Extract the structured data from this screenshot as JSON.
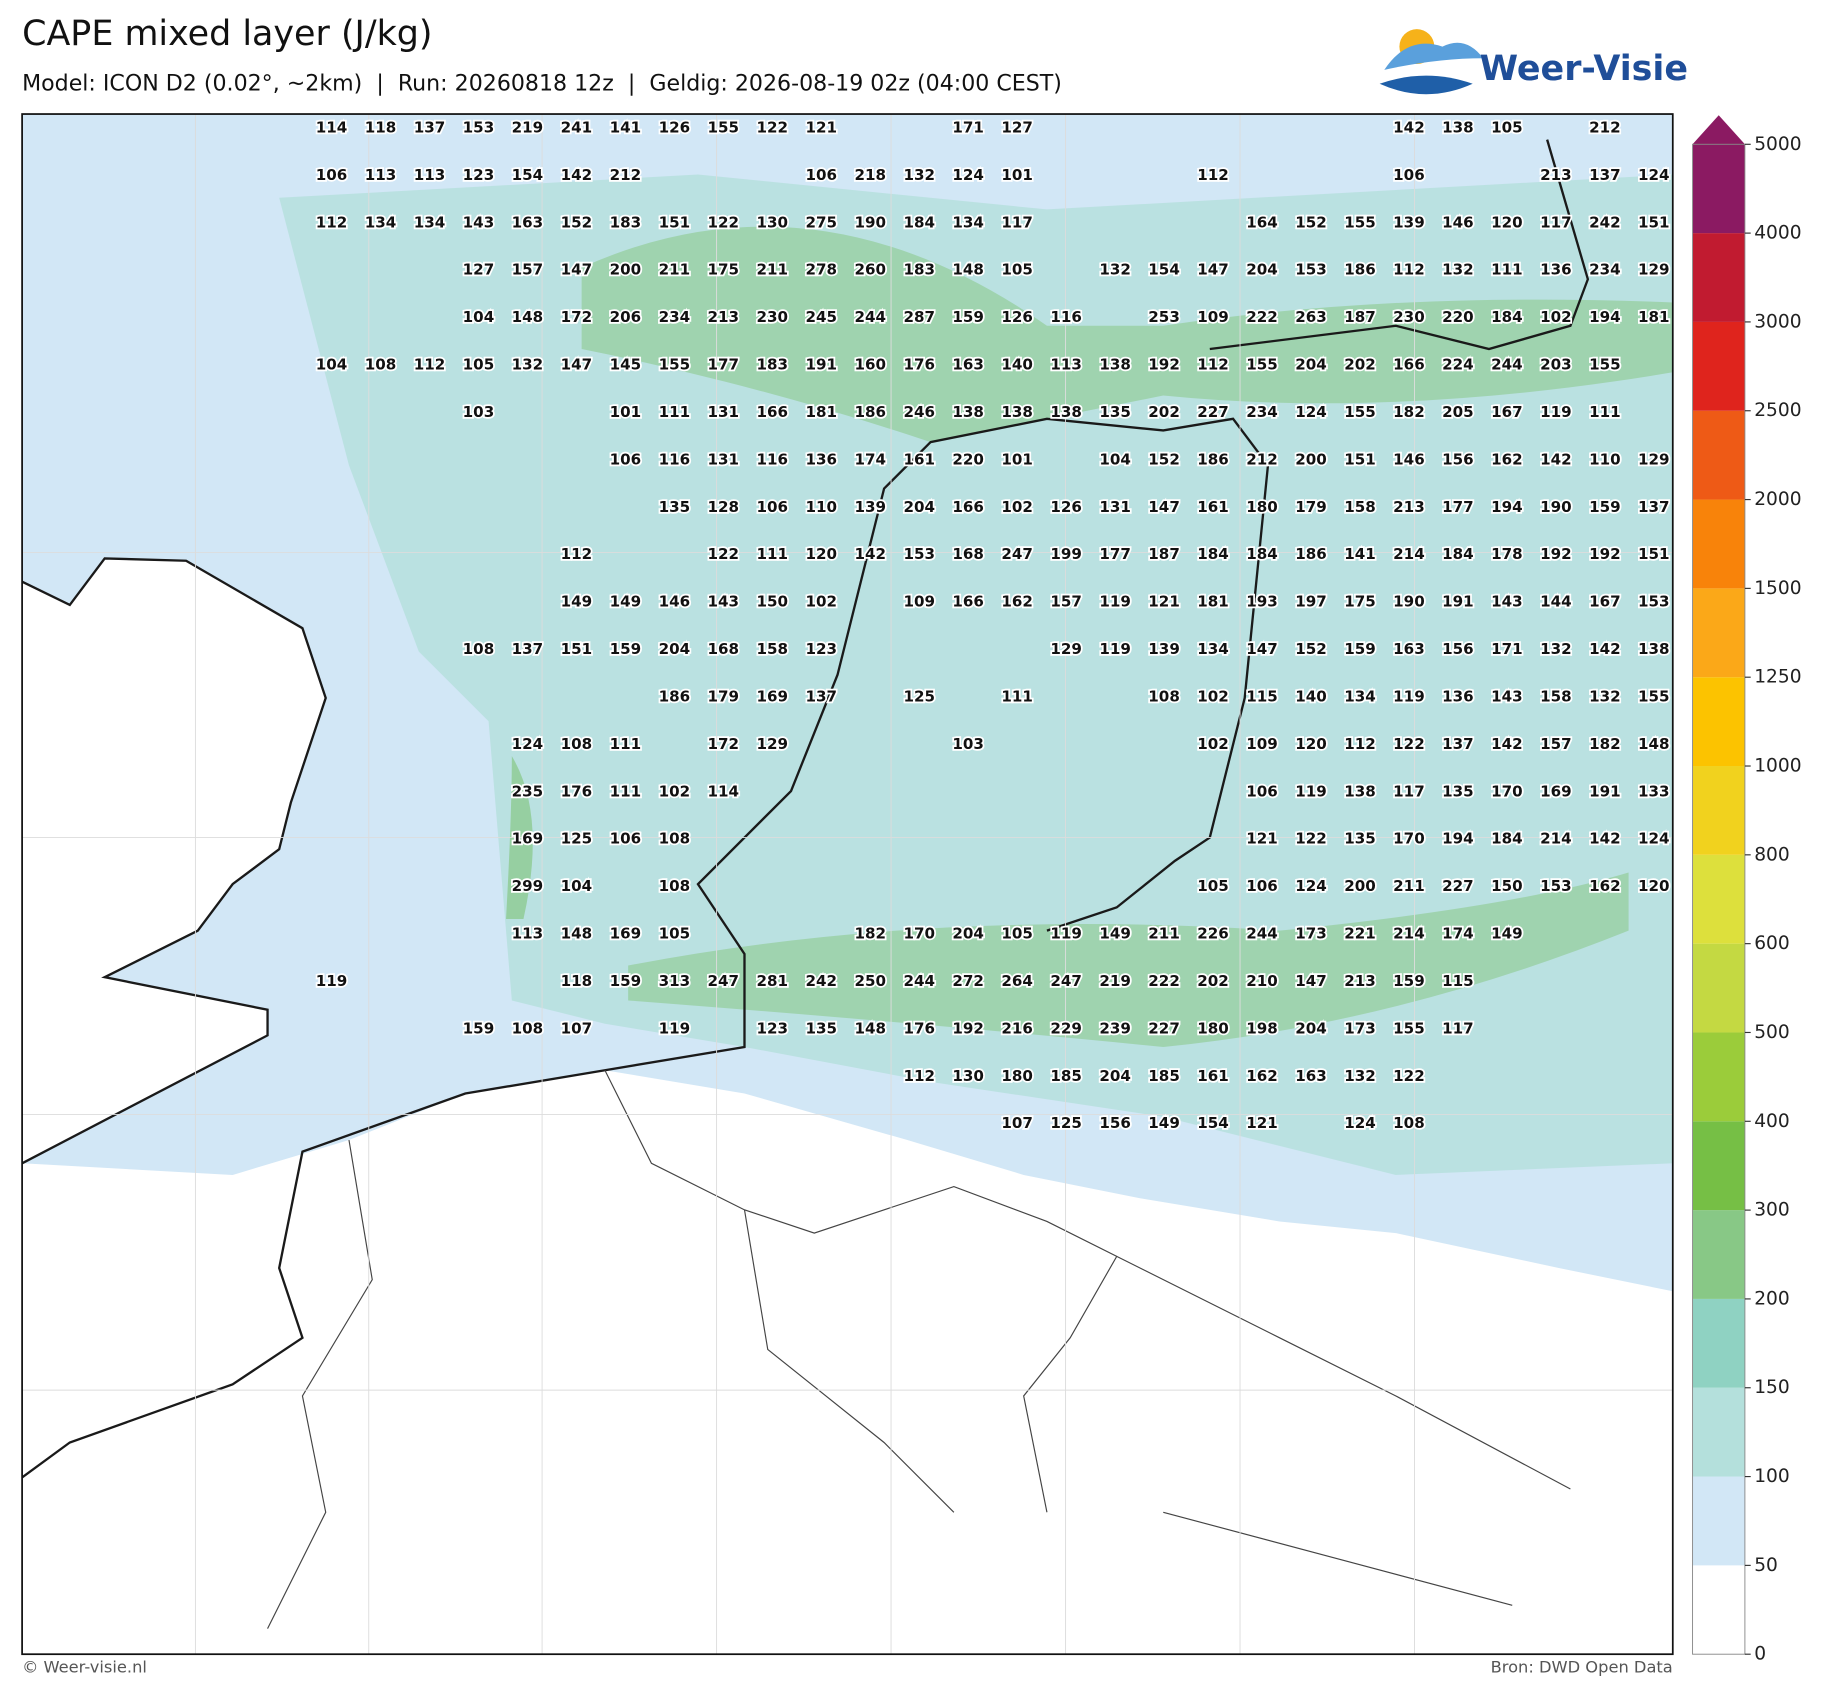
{
  "header": {
    "title": "CAPE mixed layer (J/kg)",
    "subtitle": "Model: ICON D2 (0.02°, ~2km)  |  Run: 20260818 12z  |  Geldig: 2026-08-19 02z (04:00 CEST)",
    "logo": "Weer-Visie"
  },
  "footer": {
    "left": "© Weer-visie.nl",
    "right": "Bron: DWD Open Data"
  },
  "colorbar": {
    "ticks": [
      0,
      50,
      100,
      150,
      200,
      300,
      400,
      500,
      600,
      800,
      1000,
      1250,
      1500,
      2000,
      2500,
      3000,
      4000,
      5000
    ],
    "colors": [
      "#ffffff",
      "#d2e7f6",
      "#b4e0dc",
      "#8fd2c2",
      "#88c886",
      "#76bf45",
      "#9bcc3a",
      "#c4d942",
      "#dde03c",
      "#f1d21e",
      "#fcc300",
      "#fba818",
      "#f8830a",
      "#ee5a16",
      "#df241d",
      "#c11b30",
      "#8b1a62"
    ]
  },
  "grid": {
    "rows": [
      [
        114,
        118,
        137,
        153,
        219,
        241,
        141,
        126,
        155,
        122,
        121,
        null,
        null,
        171,
        127,
        null,
        null,
        null,
        null,
        null,
        null,
        null,
        142,
        138,
        105,
        null,
        212,
        null
      ],
      [
        106,
        113,
        113,
        123,
        154,
        142,
        212,
        null,
        null,
        null,
        106,
        218,
        132,
        124,
        101,
        null,
        null,
        null,
        112,
        null,
        null,
        null,
        106,
        null,
        null,
        213,
        137,
        124
      ],
      [
        112,
        134,
        134,
        143,
        163,
        152,
        183,
        151,
        122,
        130,
        275,
        190,
        184,
        134,
        117,
        null,
        null,
        null,
        null,
        164,
        152,
        155,
        139,
        146,
        120,
        117,
        242,
        151
      ],
      [
        null,
        null,
        null,
        127,
        157,
        147,
        200,
        211,
        175,
        211,
        278,
        260,
        183,
        148,
        105,
        null,
        132,
        154,
        147,
        204,
        153,
        186,
        112,
        132,
        111,
        136,
        234,
        129
      ],
      [
        null,
        null,
        null,
        104,
        148,
        172,
        206,
        234,
        213,
        230,
        245,
        244,
        287,
        159,
        126,
        116,
        null,
        253,
        109,
        222,
        263,
        187,
        230,
        220,
        184,
        102,
        194,
        181
      ],
      [
        104,
        108,
        112,
        105,
        132,
        147,
        145,
        155,
        177,
        183,
        191,
        160,
        176,
        163,
        140,
        113,
        138,
        192,
        112,
        155,
        204,
        202,
        166,
        224,
        244,
        203,
        155,
        null
      ],
      [
        null,
        null,
        null,
        103,
        null,
        null,
        101,
        111,
        131,
        166,
        181,
        186,
        246,
        138,
        138,
        138,
        135,
        202,
        227,
        234,
        124,
        155,
        182,
        205,
        167,
        119,
        111,
        null
      ],
      [
        null,
        null,
        null,
        null,
        null,
        null,
        106,
        116,
        131,
        116,
        136,
        174,
        161,
        220,
        101,
        null,
        104,
        152,
        186,
        212,
        200,
        151,
        146,
        156,
        162,
        142,
        110,
        129
      ],
      [
        null,
        null,
        null,
        null,
        null,
        null,
        null,
        135,
        128,
        106,
        110,
        139,
        204,
        166,
        102,
        126,
        131,
        147,
        161,
        180,
        179,
        158,
        213,
        177,
        194,
        190,
        159,
        137
      ],
      [
        null,
        null,
        null,
        null,
        null,
        112,
        null,
        null,
        122,
        111,
        120,
        142,
        153,
        168,
        247,
        199,
        177,
        187,
        184,
        184,
        186,
        141,
        214,
        184,
        178,
        192,
        192,
        151
      ],
      [
        null,
        null,
        null,
        null,
        null,
        149,
        149,
        146,
        143,
        150,
        102,
        null,
        109,
        166,
        162,
        157,
        119,
        121,
        181,
        193,
        197,
        175,
        190,
        191,
        143,
        144,
        167,
        153
      ],
      [
        null,
        null,
        null,
        108,
        137,
        151,
        159,
        204,
        168,
        158,
        123,
        null,
        null,
        null,
        null,
        129,
        119,
        139,
        134,
        147,
        152,
        159,
        163,
        156,
        171,
        132,
        142,
        138
      ],
      [
        null,
        null,
        null,
        null,
        null,
        null,
        null,
        186,
        179,
        169,
        137,
        null,
        125,
        null,
        111,
        null,
        null,
        108,
        102,
        115,
        140,
        134,
        119,
        136,
        143,
        158,
        132,
        155
      ],
      [
        null,
        null,
        null,
        null,
        124,
        108,
        111,
        null,
        172,
        129,
        null,
        null,
        null,
        103,
        null,
        null,
        null,
        null,
        102,
        109,
        120,
        112,
        122,
        137,
        142,
        157,
        182,
        148
      ],
      [
        null,
        null,
        null,
        null,
        235,
        176,
        111,
        102,
        114,
        null,
        null,
        null,
        null,
        null,
        null,
        null,
        null,
        null,
        null,
        106,
        119,
        138,
        117,
        135,
        170,
        169,
        191,
        133
      ],
      [
        null,
        null,
        null,
        null,
        169,
        125,
        106,
        108,
        null,
        null,
        null,
        null,
        null,
        null,
        null,
        null,
        null,
        null,
        null,
        121,
        122,
        135,
        170,
        194,
        184,
        214,
        142,
        124
      ],
      [
        null,
        null,
        null,
        null,
        299,
        104,
        null,
        108,
        null,
        null,
        null,
        null,
        null,
        null,
        null,
        null,
        null,
        null,
        105,
        106,
        124,
        200,
        211,
        227,
        150,
        153,
        162,
        120
      ],
      [
        null,
        null,
        null,
        null,
        113,
        148,
        169,
        105,
        null,
        null,
        null,
        182,
        170,
        204,
        105,
        119,
        149,
        211,
        226,
        244,
        173,
        221,
        214,
        174,
        149,
        null,
        null,
        null
      ],
      [
        119,
        null,
        null,
        null,
        null,
        118,
        159,
        313,
        247,
        281,
        242,
        250,
        244,
        272,
        264,
        247,
        219,
        222,
        202,
        210,
        147,
        213,
        159,
        115,
        null,
        null,
        null,
        null
      ],
      [
        null,
        null,
        null,
        159,
        108,
        107,
        null,
        119,
        null,
        123,
        135,
        148,
        176,
        192,
        216,
        229,
        239,
        227,
        180,
        198,
        204,
        173,
        155,
        117,
        null,
        null,
        null,
        null
      ],
      [
        null,
        null,
        null,
        null,
        null,
        null,
        null,
        null,
        null,
        null,
        null,
        null,
        112,
        130,
        180,
        185,
        204,
        185,
        161,
        162,
        163,
        132,
        122,
        null,
        null,
        null,
        null,
        null
      ],
      [
        null,
        null,
        null,
        null,
        null,
        null,
        null,
        null,
        null,
        null,
        null,
        null,
        null,
        null,
        107,
        125,
        156,
        149,
        154,
        121,
        null,
        124,
        108,
        null,
        null,
        null,
        null,
        null
      ]
    ]
  }
}
